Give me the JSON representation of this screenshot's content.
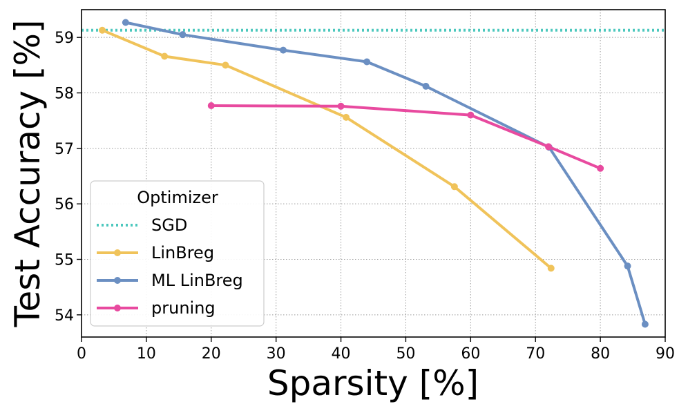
{
  "chart_data": {
    "type": "line",
    "title": "",
    "xlabel": "Sparsity [%]",
    "ylabel": "Test Accuracy [%]",
    "xlim": [
      0,
      90
    ],
    "ylim": [
      53.6,
      59.5
    ],
    "xticks": [
      0,
      10,
      20,
      30,
      40,
      50,
      60,
      70,
      80,
      90
    ],
    "yticks": [
      54,
      55,
      56,
      57,
      58,
      59
    ],
    "grid": true,
    "legend": {
      "title": "Optimizer",
      "location": "lower-left"
    },
    "series": [
      {
        "name": "SGD",
        "style": "dotted-hline",
        "color": "#4dc8be",
        "y": 59.13
      },
      {
        "name": "LinBreg",
        "style": "line-marker",
        "color": "#f0c35a",
        "points": [
          [
            3.2,
            59.13
          ],
          [
            12.8,
            58.66
          ],
          [
            22.2,
            58.5
          ],
          [
            40.8,
            57.56
          ],
          [
            57.5,
            56.31
          ],
          [
            72.4,
            54.84
          ]
        ]
      },
      {
        "name": "ML LinBreg",
        "style": "line-marker",
        "color": "#6b8fc2",
        "points": [
          [
            6.8,
            59.27
          ],
          [
            15.6,
            59.05
          ],
          [
            31.1,
            58.77
          ],
          [
            44.0,
            58.56
          ],
          [
            53.1,
            58.12
          ],
          [
            72.1,
            57.02
          ],
          [
            84.2,
            54.88
          ],
          [
            86.9,
            53.83
          ]
        ]
      },
      {
        "name": "pruning",
        "style": "line-marker",
        "color": "#e84a9f",
        "points": [
          [
            20.0,
            57.77
          ],
          [
            40.0,
            57.76
          ],
          [
            60.0,
            57.6
          ],
          [
            72.0,
            57.03
          ],
          [
            80.0,
            56.64
          ]
        ]
      }
    ]
  }
}
